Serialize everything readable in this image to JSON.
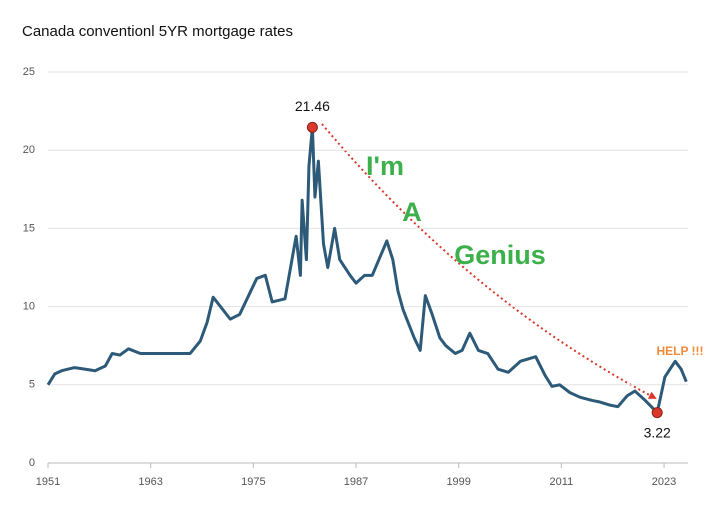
{
  "chart_data": {
    "type": "line",
    "title": "Canada conventionl 5YR mortgage rates",
    "xlim": [
      1951,
      2025.8
    ],
    "xticks": [
      1951,
      1963,
      1975,
      1987,
      1999,
      2011,
      2023
    ],
    "ylim": [
      0,
      25
    ],
    "yticks": [
      0,
      5,
      10,
      15,
      20,
      25
    ],
    "grid": true,
    "series": [
      {
        "name": "5YR mortgage rate",
        "color": "#2c5a78",
        "x": [
          1951,
          1951.8,
          1952.6,
          1954.1,
          1955.3,
          1956.5,
          1957.7,
          1958.5,
          1959.4,
          1960.4,
          1961.8,
          1963.5,
          1965.8,
          1967.6,
          1968.8,
          1969.6,
          1970.3,
          1972.3,
          1973.4,
          1975.4,
          1976.4,
          1977.2,
          1978.7,
          1980.0,
          1980.5,
          1980.7,
          1981.2,
          1981.5,
          1981.9,
          1982.2,
          1982.6,
          1983.2,
          1983.7,
          1984.5,
          1985.1,
          1986.3,
          1987.0,
          1988.0,
          1988.9,
          1990.6,
          1991.3,
          1991.9,
          1992.5,
          1993.8,
          1994.5,
          1995.1,
          1995.9,
          1996.8,
          1997.5,
          1998.6,
          1999.4,
          2000.3,
          2001.3,
          2002.4,
          2003.6,
          2004.8,
          2006.2,
          2008.0,
          2009.1,
          2009.9,
          2010.8,
          2012.0,
          2013.2,
          2014.6,
          2015.5,
          2016.7,
          2017.6,
          2018.7,
          2019.6,
          2020.8,
          2022.2,
          2023.1,
          2024.3,
          2025.0,
          2025.6
        ],
        "values": [
          5.0,
          5.7,
          5.9,
          6.1,
          6.0,
          5.9,
          6.2,
          7.0,
          6.9,
          7.3,
          7.0,
          7.0,
          7.0,
          7.0,
          7.8,
          9.0,
          10.6,
          9.2,
          9.5,
          11.8,
          12.0,
          10.3,
          10.5,
          14.5,
          12.0,
          16.8,
          13.0,
          19.0,
          21.46,
          17.0,
          19.3,
          14.0,
          12.5,
          15.0,
          13.0,
          12.0,
          11.5,
          12.0,
          12.0,
          14.2,
          13.0,
          11.0,
          9.8,
          8.0,
          7.2,
          10.7,
          9.5,
          8.0,
          7.5,
          7.0,
          7.2,
          8.3,
          7.2,
          7.0,
          6.0,
          5.8,
          6.5,
          6.8,
          5.6,
          4.9,
          5.0,
          4.5,
          4.2,
          4.0,
          3.9,
          3.7,
          3.6,
          4.3,
          4.6,
          4.0,
          3.22,
          5.5,
          6.5,
          6.0,
          5.2
        ]
      }
    ],
    "highlight_color": "#d9382b",
    "annotations": [
      {
        "text": "I'm",
        "color": "#3cb04a"
      },
      {
        "text": "A",
        "color": "#3cb04a"
      },
      {
        "text": "Genius",
        "color": "#3cb04a"
      },
      {
        "text": "HELP !!!",
        "color": "#f08a3a"
      }
    ]
  }
}
